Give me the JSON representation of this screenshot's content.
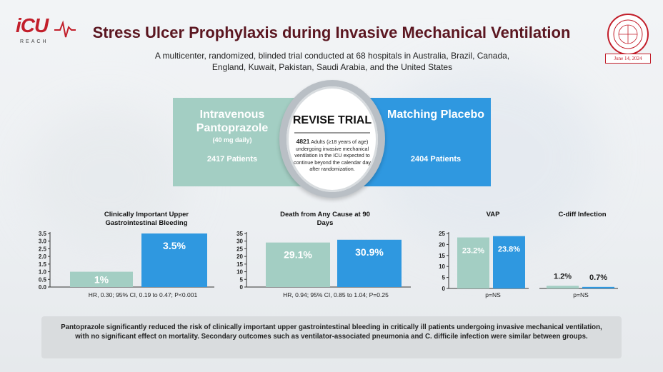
{
  "header": {
    "logo_main": "iCU",
    "logo_sub": "REACH",
    "title": "Stress Ulcer Prophylaxis during Invasive Mechanical Ventilation",
    "subtitle": "A multicenter, randomized, blinded trial conducted at 68 hospitals in Australia, Brazil, Canada, England, Kuwait, Pakistan, Saudi Arabia, and the United States",
    "journal_seal": "THE NEW ENGLAND JOURNAL of MEDICINE",
    "date": "June 14, 2024"
  },
  "trial": {
    "left_arm_title": "Intravenous Pantoprazole",
    "left_arm_dose": "(40 mg daily)",
    "left_arm_patients": "2417 Patients",
    "center_title": "REVISE TRIAL",
    "center_count": "4821",
    "center_desc": "Adults (≥18 years of age) undergoing invasive mechanical ventilation in the ICU expected to continue beyond the calendar day after randomization.",
    "right_arm_title": "Matching Placebo",
    "right_arm_patients": "2404 Patients"
  },
  "colors": {
    "pantoprazole": "#a3cec3",
    "placebo": "#2f98e0",
    "title": "#5b1620",
    "accent": "#c21f2b"
  },
  "chart_data": [
    {
      "type": "bar",
      "title": "Clinically Important Upper Gastrointestinal Bleeding",
      "categories": [
        "Pantoprazole",
        "Placebo"
      ],
      "values": [
        1.0,
        3.5
      ],
      "value_labels": [
        "1%",
        "3.5%"
      ],
      "ylim": [
        0,
        3.5
      ],
      "yticks": [
        "0.0",
        "0.5",
        "1.0",
        "1.5",
        "2.0",
        "2.5",
        "3.0",
        "3.5"
      ],
      "footnote": "HR, 0.30; 95% CI, 0.19 to 0.47; P<0.001"
    },
    {
      "type": "bar",
      "title": "Death from Any Cause at 90 Days",
      "categories": [
        "Pantoprazole",
        "Placebo"
      ],
      "values": [
        29.1,
        30.9
      ],
      "value_labels": [
        "29.1%",
        "30.9%"
      ],
      "ylim": [
        0,
        35
      ],
      "yticks": [
        "0",
        "5",
        "10",
        "15",
        "20",
        "25",
        "30",
        "35"
      ],
      "footnote": "HR, 0.94; 95% CI, 0.85 to 1.04; P=0.25"
    },
    {
      "type": "bar",
      "title": "VAP",
      "categories": [
        "Pantoprazole",
        "Placebo"
      ],
      "values": [
        23.2,
        23.8
      ],
      "value_labels": [
        "23.2%",
        "23.8%"
      ],
      "ylim": [
        0,
        25
      ],
      "yticks": [
        "0",
        "5",
        "10",
        "15",
        "20",
        "25"
      ],
      "footnote": "p=NS"
    },
    {
      "type": "bar",
      "title": "C-diff Infection",
      "categories": [
        "Pantoprazole",
        "Placebo"
      ],
      "values": [
        1.2,
        0.7
      ],
      "value_labels": [
        "1.2%",
        "0.7%"
      ],
      "ylim": [
        0,
        25
      ],
      "footnote": "p=NS"
    }
  ],
  "summary": "Pantoprazole significantly reduced the risk of clinically important upper gastrointestinal bleeding in critically ill patients undergoing invasive mechanical ventilation, with no significant effect on mortality. Secondary outcomes such as ventilator-associated pneumonia and C. difficile infection were similar between groups."
}
